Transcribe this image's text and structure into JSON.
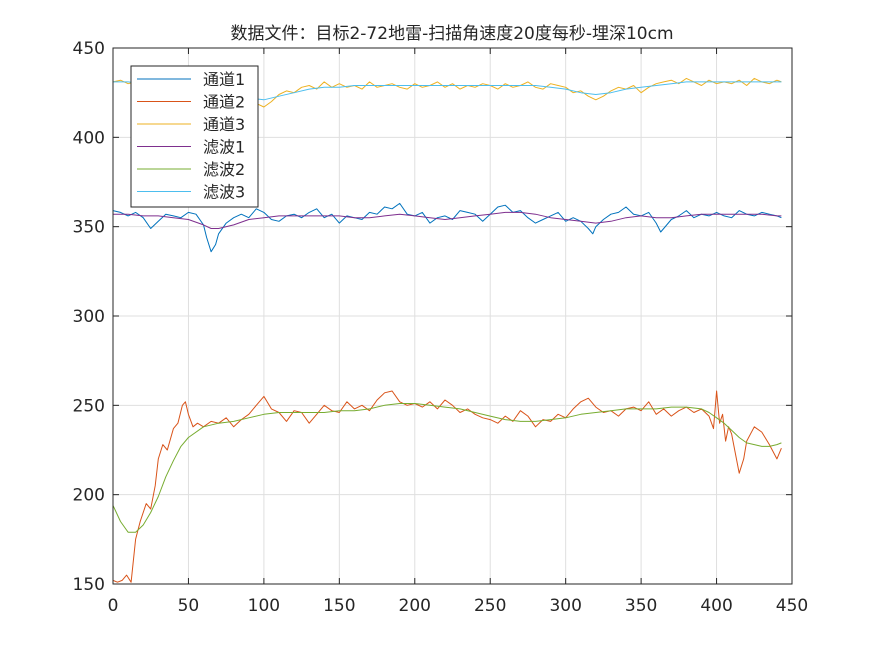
{
  "chart_data": {
    "type": "line",
    "title": "数据文件：目标2-72地雷-扫描角速度20度每秒-埋深10cm",
    "xlabel": "",
    "ylabel": "",
    "xlim": [
      0,
      450
    ],
    "ylim": [
      150,
      450
    ],
    "xticks": [
      0,
      50,
      100,
      150,
      200,
      250,
      300,
      350,
      400,
      450
    ],
    "yticks": [
      150,
      200,
      250,
      300,
      350,
      400,
      450
    ],
    "grid": true,
    "legend_position": "top-left",
    "series": [
      {
        "name": "通道1",
        "color": "#0072BD",
        "x": [
          0,
          5,
          10,
          15,
          20,
          25,
          30,
          35,
          40,
          45,
          50,
          55,
          60,
          62,
          65,
          68,
          70,
          75,
          80,
          85,
          90,
          95,
          100,
          105,
          110,
          115,
          120,
          125,
          130,
          135,
          140,
          145,
          150,
          155,
          160,
          165,
          170,
          175,
          180,
          185,
          190,
          195,
          200,
          205,
          210,
          215,
          220,
          225,
          230,
          235,
          240,
          245,
          250,
          255,
          260,
          265,
          270,
          275,
          280,
          285,
          290,
          295,
          300,
          305,
          310,
          315,
          318,
          320,
          325,
          330,
          335,
          340,
          345,
          350,
          355,
          360,
          363,
          365,
          370,
          375,
          380,
          385,
          390,
          395,
          400,
          405,
          410,
          415,
          420,
          425,
          430,
          435,
          440,
          443
        ],
        "y": [
          359,
          358,
          356,
          358,
          355,
          349,
          353,
          357,
          356,
          355,
          358,
          357,
          351,
          344,
          336,
          340,
          346,
          352,
          355,
          357,
          355,
          360,
          358,
          354,
          353,
          356,
          357,
          355,
          358,
          360,
          355,
          357,
          352,
          356,
          355,
          354,
          358,
          357,
          361,
          360,
          363,
          357,
          356,
          358,
          352,
          355,
          356,
          354,
          359,
          358,
          357,
          353,
          357,
          361,
          362,
          358,
          359,
          355,
          352,
          354,
          356,
          358,
          353,
          355,
          353,
          349,
          346,
          350,
          354,
          357,
          358,
          361,
          357,
          356,
          358,
          352,
          347,
          349,
          354,
          356,
          359,
          355,
          357,
          356,
          358,
          356,
          355,
          359,
          357,
          356,
          358,
          357,
          356,
          355
        ]
      },
      {
        "name": "通道2",
        "color": "#D95319",
        "x": [
          0,
          3,
          6,
          9,
          12,
          15,
          18,
          22,
          25,
          28,
          30,
          33,
          36,
          40,
          43,
          46,
          48,
          50,
          53,
          56,
          60,
          65,
          70,
          75,
          80,
          85,
          90,
          95,
          100,
          105,
          110,
          115,
          120,
          125,
          130,
          135,
          140,
          145,
          150,
          155,
          160,
          165,
          170,
          175,
          180,
          185,
          190,
          195,
          200,
          205,
          210,
          215,
          220,
          225,
          230,
          235,
          240,
          245,
          250,
          255,
          260,
          265,
          270,
          275,
          280,
          285,
          290,
          295,
          300,
          305,
          310,
          315,
          320,
          325,
          330,
          335,
          340,
          345,
          350,
          355,
          360,
          365,
          370,
          375,
          380,
          385,
          390,
          395,
          398,
          400,
          402,
          404,
          406,
          408,
          410,
          412,
          415,
          418,
          420,
          425,
          430,
          435,
          440,
          443
        ],
        "y": [
          152,
          151,
          152,
          155,
          151,
          175,
          185,
          195,
          192,
          205,
          220,
          228,
          225,
          237,
          240,
          250,
          252,
          245,
          238,
          240,
          238,
          241,
          240,
          243,
          238,
          242,
          245,
          250,
          255,
          248,
          246,
          241,
          247,
          246,
          240,
          245,
          250,
          247,
          246,
          252,
          248,
          250,
          247,
          253,
          257,
          258,
          252,
          250,
          251,
          249,
          252,
          248,
          253,
          250,
          246,
          248,
          245,
          243,
          242,
          240,
          244,
          241,
          247,
          244,
          238,
          242,
          241,
          245,
          243,
          248,
          252,
          254,
          249,
          246,
          247,
          244,
          248,
          249,
          247,
          252,
          245,
          248,
          244,
          247,
          249,
          246,
          248,
          244,
          237,
          258,
          240,
          245,
          230,
          238,
          234,
          225,
          212,
          220,
          230,
          238,
          235,
          228,
          220,
          226
        ]
      },
      {
        "name": "通道3",
        "color": "#EDB120",
        "x": [
          0,
          5,
          10,
          15,
          20,
          25,
          30,
          35,
          40,
          45,
          50,
          55,
          60,
          65,
          70,
          75,
          80,
          85,
          90,
          95,
          100,
          105,
          110,
          115,
          120,
          125,
          130,
          135,
          140,
          145,
          150,
          155,
          160,
          165,
          170,
          175,
          180,
          185,
          190,
          195,
          200,
          205,
          210,
          215,
          220,
          225,
          230,
          235,
          240,
          245,
          250,
          255,
          260,
          265,
          270,
          275,
          280,
          285,
          290,
          295,
          300,
          305,
          310,
          315,
          320,
          325,
          330,
          335,
          340,
          345,
          350,
          355,
          360,
          365,
          370,
          375,
          380,
          385,
          390,
          395,
          400,
          405,
          410,
          415,
          420,
          425,
          430,
          435,
          440,
          443
        ],
        "y": [
          431,
          432,
          430,
          431,
          429,
          430,
          432,
          428,
          427,
          429,
          424,
          426,
          428,
          425,
          427,
          424,
          426,
          425,
          424,
          419,
          417,
          420,
          424,
          426,
          425,
          428,
          429,
          427,
          431,
          428,
          430,
          428,
          429,
          427,
          431,
          428,
          429,
          430,
          428,
          427,
          430,
          428,
          429,
          431,
          428,
          430,
          427,
          429,
          428,
          430,
          429,
          427,
          430,
          428,
          429,
          431,
          428,
          427,
          430,
          429,
          428,
          425,
          426,
          423,
          421,
          423,
          426,
          428,
          427,
          429,
          425,
          428,
          430,
          431,
          432,
          430,
          433,
          431,
          429,
          432,
          430,
          431,
          430,
          432,
          429,
          433,
          431,
          430,
          432,
          431
        ]
      },
      {
        "name": "滤波1",
        "color": "#7E2F8E",
        "x": [
          0,
          10,
          20,
          30,
          40,
          50,
          60,
          65,
          70,
          80,
          90,
          100,
          110,
          120,
          130,
          140,
          150,
          160,
          170,
          180,
          190,
          200,
          210,
          220,
          230,
          240,
          250,
          260,
          270,
          280,
          290,
          300,
          310,
          320,
          330,
          340,
          350,
          360,
          370,
          380,
          390,
          400,
          410,
          420,
          430,
          440,
          443
        ],
        "y": [
          357,
          357,
          356,
          356,
          355,
          354,
          351,
          349,
          349,
          351,
          354,
          355,
          356,
          356,
          356,
          356,
          356,
          355,
          355,
          356,
          357,
          356,
          355,
          354,
          355,
          356,
          357,
          358,
          358,
          357,
          355,
          354,
          353,
          352,
          353,
          355,
          356,
          355,
          355,
          356,
          357,
          357,
          357,
          357,
          357,
          356,
          356
        ]
      },
      {
        "name": "滤波2",
        "color": "#77AC30",
        "x": [
          0,
          5,
          10,
          15,
          20,
          25,
          30,
          35,
          40,
          45,
          50,
          60,
          70,
          80,
          90,
          100,
          110,
          120,
          130,
          140,
          150,
          160,
          170,
          180,
          190,
          200,
          210,
          220,
          230,
          240,
          250,
          260,
          270,
          280,
          290,
          300,
          310,
          320,
          330,
          340,
          350,
          360,
          370,
          380,
          390,
          395,
          400,
          405,
          410,
          415,
          420,
          425,
          430,
          435,
          440,
          443
        ],
        "y": [
          194,
          185,
          179,
          179,
          183,
          190,
          199,
          210,
          219,
          227,
          232,
          238,
          240,
          241,
          243,
          245,
          246,
          246,
          246,
          246,
          247,
          247,
          248,
          250,
          251,
          251,
          250,
          249,
          248,
          246,
          244,
          242,
          241,
          241,
          242,
          243,
          245,
          246,
          247,
          248,
          248,
          248,
          249,
          249,
          248,
          246,
          243,
          240,
          236,
          232,
          229,
          228,
          227,
          227,
          228,
          229
        ]
      },
      {
        "name": "滤波3",
        "color": "#4DBEEE",
        "x": [
          0,
          10,
          20,
          30,
          40,
          50,
          60,
          70,
          80,
          90,
          100,
          110,
          120,
          130,
          140,
          150,
          160,
          170,
          180,
          190,
          200,
          210,
          220,
          230,
          240,
          250,
          260,
          270,
          280,
          290,
          300,
          310,
          320,
          330,
          340,
          350,
          360,
          370,
          380,
          390,
          400,
          410,
          420,
          430,
          440,
          443
        ],
        "y": [
          431,
          431,
          430,
          430,
          429,
          428,
          427,
          426,
          424,
          422,
          421,
          423,
          425,
          427,
          428,
          428,
          429,
          429,
          429,
          429,
          429,
          429,
          429,
          429,
          429,
          429,
          429,
          429,
          429,
          428,
          427,
          425,
          424,
          425,
          427,
          428,
          429,
          430,
          431,
          431,
          431,
          431,
          431,
          431,
          431,
          431
        ]
      }
    ]
  }
}
